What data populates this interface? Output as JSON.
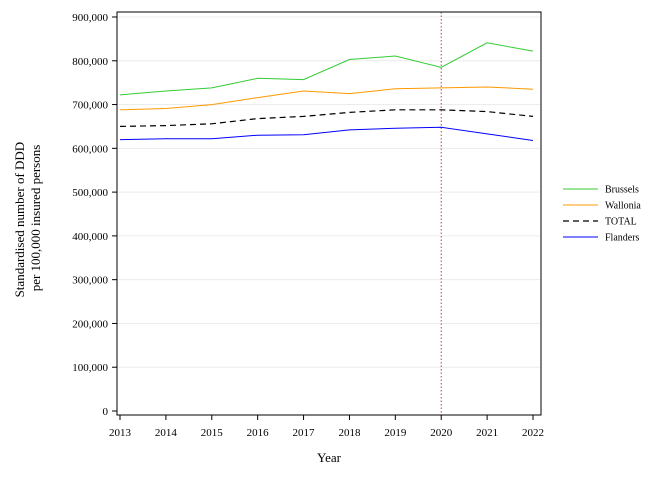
{
  "chart_data": {
    "type": "line",
    "title": "",
    "xlabel": "Year",
    "ylabel_lines": [
      "Standardised number of DDD",
      "per 100,000 insured persons"
    ],
    "x": [
      2013,
      2014,
      2015,
      2016,
      2017,
      2018,
      2019,
      2020,
      2021,
      2022
    ],
    "x_tick_labels": [
      "2013",
      "2014",
      "2015",
      "2016",
      "2017",
      "2018",
      "2019",
      "2020",
      "2021",
      "2022"
    ],
    "ylim": [
      0,
      900000
    ],
    "y_ticks": [
      0,
      100000,
      200000,
      300000,
      400000,
      500000,
      600000,
      700000,
      800000,
      900000
    ],
    "y_tick_labels": [
      "0",
      "100,000",
      "200,000",
      "300,000",
      "400,000",
      "500,000",
      "600,000",
      "700,000",
      "800,000",
      "900,000"
    ],
    "grid": "horizontal",
    "reference_line": {
      "x": 2020,
      "color": "#c04040",
      "style": "dotted"
    },
    "legend_position": "right",
    "series": [
      {
        "name": "Brussels",
        "color": "#33cc33",
        "dash": "solid",
        "values": [
          722000,
          731000,
          738000,
          760000,
          757000,
          803000,
          811000,
          785000,
          841000,
          822000
        ]
      },
      {
        "name": "Wallonia",
        "color": "#ff9900",
        "dash": "solid",
        "values": [
          688000,
          691000,
          700000,
          716000,
          731000,
          725000,
          736000,
          738000,
          740000,
          735000
        ]
      },
      {
        "name": "TOTAL",
        "color": "#000000",
        "dash": "dashed",
        "values": [
          650000,
          652000,
          656000,
          668000,
          673000,
          682000,
          688000,
          688000,
          684000,
          673000
        ]
      },
      {
        "name": "Flanders",
        "color": "#0000ff",
        "dash": "solid",
        "values": [
          620000,
          622000,
          622000,
          630000,
          631000,
          642000,
          646000,
          648000,
          633000,
          618000
        ]
      }
    ]
  }
}
